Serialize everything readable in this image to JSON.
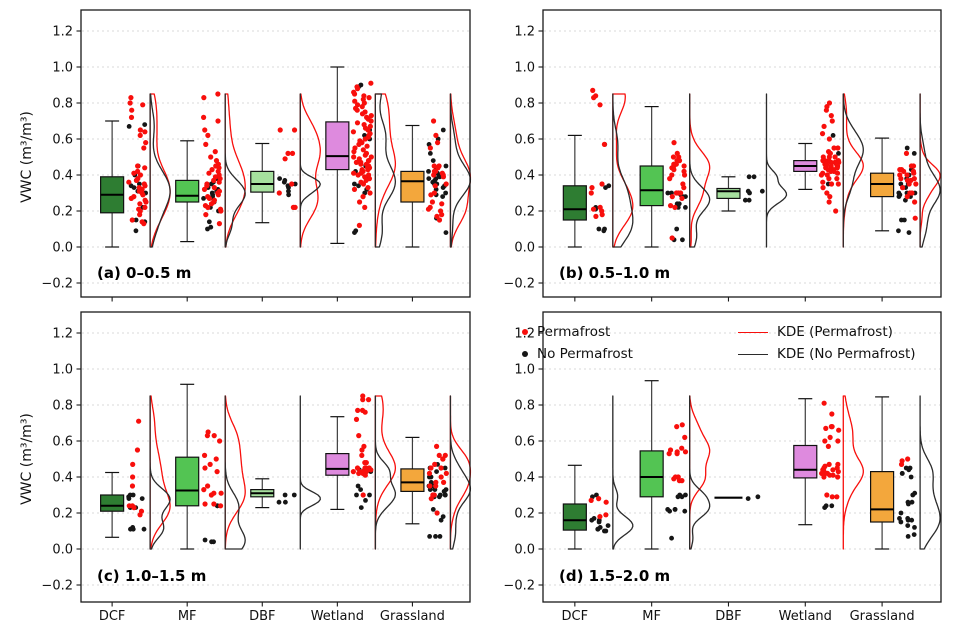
{
  "figure": {
    "ylabel": "VWC (m³/m³)",
    "categories": [
      "DCF",
      "MF",
      "DBF",
      "Wetland",
      "Grassland"
    ],
    "yticks": [
      1.2,
      1.0,
      0.8,
      0.6,
      0.4,
      0.2,
      0.0,
      -0.2
    ],
    "ytick_labels": [
      "1.2",
      "1.0",
      "0.8",
      "0.6",
      "0.4",
      "0.2",
      "0.0",
      "−0.2"
    ],
    "ylim": [
      -0.285,
      1.315
    ],
    "kde_clip": [
      0.0,
      0.85
    ],
    "colors": {
      "box_fills": [
        "#2e7d32",
        "#53c453",
        "#a6e09e",
        "#de8ade",
        "#f3a73c"
      ],
      "box_edge": "#111111",
      "whisker": "#3d3d3d",
      "permafrost": "#f80f0c",
      "no_permafrost": "#161616",
      "kde_permafrost": "#f80f0c",
      "kde_no_permafrost": "#2b2b2b",
      "grid": "#d8d8d8",
      "spine": "#1a1a1a"
    },
    "legend": [
      {
        "label": "Permafrost",
        "marker": "dot",
        "color": "#f80f0c"
      },
      {
        "label": "No Permafrost",
        "marker": "dot",
        "color": "#161616"
      },
      {
        "label": "KDE (Permafrost)",
        "marker": "line",
        "color": "#f80f0c"
      },
      {
        "label": "KDE (No Permafrost)",
        "marker": "line",
        "color": "#2b2b2b"
      }
    ]
  },
  "chart_data": [
    {
      "type": "box",
      "panel": "a",
      "label": "(a) 0–0.5 m",
      "categories": [
        "DCF",
        "MF",
        "DBF",
        "Wetland",
        "Grassland"
      ],
      "boxes": [
        {
          "whislo": 0.0,
          "q1": 0.19,
          "med": 0.29,
          "q3": 0.39,
          "whishi": 0.7
        },
        {
          "whislo": 0.03,
          "q1": 0.25,
          "med": 0.285,
          "q3": 0.37,
          "whishi": 0.59
        },
        {
          "whislo": 0.135,
          "q1": 0.305,
          "med": 0.35,
          "q3": 0.42,
          "whishi": 0.575
        },
        {
          "whislo": 0.02,
          "q1": 0.43,
          "med": 0.505,
          "q3": 0.695,
          "whishi": 1.0
        },
        {
          "whislo": 0.0,
          "q1": 0.25,
          "med": 0.365,
          "q3": 0.42,
          "whishi": 0.675
        }
      ],
      "points": {
        "permafrost": [
          [
            0.83,
            0.8,
            0.79,
            0.76,
            0.72,
            0.65,
            0.64,
            0.62,
            0.58,
            0.55,
            0.45,
            0.44,
            0.42,
            0.41,
            0.4,
            0.38,
            0.37,
            0.36,
            0.35,
            0.34,
            0.33,
            0.32,
            0.31,
            0.3,
            0.29,
            0.28,
            0.27,
            0.26,
            0.25,
            0.24,
            0.22,
            0.21,
            0.2,
            0.18,
            0.15,
            0.14,
            0.13
          ],
          [
            0.85,
            0.83,
            0.72,
            0.7,
            0.65,
            0.62,
            0.57,
            0.53,
            0.5,
            0.48,
            0.46,
            0.45,
            0.44,
            0.43,
            0.42,
            0.41,
            0.4,
            0.39,
            0.38,
            0.37,
            0.36,
            0.35,
            0.34,
            0.33,
            0.32,
            0.31,
            0.3,
            0.29,
            0.28,
            0.27,
            0.26,
            0.25,
            0.24,
            0.23,
            0.22,
            0.21,
            0.2,
            0.18,
            0.13
          ],
          [
            0.65,
            0.65,
            0.52,
            0.52,
            0.49,
            0.35,
            0.3,
            0.22,
            0.22
          ],
          [
            0.91,
            0.89,
            0.88,
            0.86,
            0.85,
            0.84,
            0.83,
            0.82,
            0.81,
            0.8,
            0.79,
            0.78,
            0.77,
            0.76,
            0.75,
            0.74,
            0.73,
            0.72,
            0.71,
            0.7,
            0.69,
            0.68,
            0.67,
            0.66,
            0.65,
            0.64,
            0.63,
            0.62,
            0.61,
            0.6,
            0.59,
            0.58,
            0.57,
            0.56,
            0.55,
            0.54,
            0.53,
            0.52,
            0.51,
            0.5,
            0.5,
            0.49,
            0.48,
            0.48,
            0.47,
            0.47,
            0.46,
            0.46,
            0.45,
            0.45,
            0.44,
            0.44,
            0.43,
            0.43,
            0.42,
            0.42,
            0.41,
            0.41,
            0.4,
            0.4,
            0.39,
            0.38,
            0.37,
            0.36,
            0.35,
            0.33,
            0.32,
            0.3,
            0.28,
            0.25,
            0.22,
            0.12
          ],
          [
            0.7,
            0.62,
            0.58,
            0.55,
            0.45,
            0.45,
            0.44,
            0.42,
            0.42,
            0.41,
            0.4,
            0.4,
            0.39,
            0.35,
            0.34,
            0.3,
            0.29,
            0.25,
            0.24,
            0.22,
            0.21,
            0.2,
            0.18,
            0.17,
            0.15
          ]
        ],
        "no_permafrost": [
          [
            0.68,
            0.67,
            0.45,
            0.4,
            0.37,
            0.35,
            0.34,
            0.33,
            0.31,
            0.3,
            0.29,
            0.27,
            0.25,
            0.22,
            0.15,
            0.14,
            0.09
          ],
          [
            0.38,
            0.36,
            0.35,
            0.33,
            0.32,
            0.31,
            0.3,
            0.29,
            0.28,
            0.27,
            0.26,
            0.25,
            0.22,
            0.2,
            0.14,
            0.11,
            0.1
          ],
          [
            0.38,
            0.37,
            0.36,
            0.35,
            0.34,
            0.33,
            0.31,
            0.29
          ],
          [
            0.9,
            0.89,
            0.65,
            0.62,
            0.6,
            0.45,
            0.42,
            0.38,
            0.35,
            0.34,
            0.32,
            0.3,
            0.09,
            0.08
          ],
          [
            0.65,
            0.6,
            0.57,
            0.52,
            0.48,
            0.45,
            0.44,
            0.42,
            0.41,
            0.4,
            0.4,
            0.39,
            0.38,
            0.38,
            0.37,
            0.36,
            0.35,
            0.35,
            0.34,
            0.33,
            0.32,
            0.3,
            0.29,
            0.28,
            0.16,
            0.08
          ]
        ]
      },
      "kde_shown": {
        "permafrost": [
          true,
          true,
          true,
          true,
          true
        ],
        "no_permafrost": [
          true,
          true,
          true,
          true,
          true
        ]
      }
    },
    {
      "type": "box",
      "panel": "b",
      "label": "(b) 0.5–1.0 m",
      "categories": [
        "DCF",
        "MF",
        "DBF",
        "Wetland",
        "Grassland"
      ],
      "boxes": [
        {
          "whislo": 0.0,
          "q1": 0.15,
          "med": 0.21,
          "q3": 0.34,
          "whishi": 0.62
        },
        {
          "whislo": 0.0,
          "q1": 0.23,
          "med": 0.315,
          "q3": 0.45,
          "whishi": 0.78
        },
        {
          "whislo": 0.2,
          "q1": 0.27,
          "med": 0.31,
          "q3": 0.325,
          "whishi": 0.39
        },
        {
          "whislo": 0.32,
          "q1": 0.42,
          "med": 0.45,
          "q3": 0.48,
          "whishi": 0.575
        },
        {
          "whislo": 0.09,
          "q1": 0.28,
          "med": 0.35,
          "q3": 0.41,
          "whishi": 0.605
        }
      ],
      "points": {
        "permafrost": [
          [
            0.87,
            0.84,
            0.83,
            0.79,
            0.57,
            0.35,
            0.33,
            0.3,
            0.22,
            0.21,
            0.2,
            0.18,
            0.17
          ],
          [
            0.58,
            0.52,
            0.5,
            0.5,
            0.48,
            0.48,
            0.46,
            0.46,
            0.45,
            0.45,
            0.44,
            0.43,
            0.42,
            0.4,
            0.4,
            0.38,
            0.35,
            0.33,
            0.3,
            0.3,
            0.3,
            0.28,
            0.27,
            0.23,
            0.22,
            0.05
          ],
          [],
          [
            0.8,
            0.78,
            0.76,
            0.73,
            0.7,
            0.67,
            0.63,
            0.6,
            0.55,
            0.55,
            0.53,
            0.52,
            0.52,
            0.5,
            0.5,
            0.5,
            0.48,
            0.48,
            0.48,
            0.48,
            0.47,
            0.47,
            0.47,
            0.46,
            0.46,
            0.46,
            0.45,
            0.45,
            0.45,
            0.45,
            0.44,
            0.44,
            0.44,
            0.43,
            0.43,
            0.43,
            0.42,
            0.42,
            0.41,
            0.41,
            0.4,
            0.4,
            0.38,
            0.38,
            0.36,
            0.35,
            0.35,
            0.33,
            0.3,
            0.28,
            0.25,
            0.2
          ],
          [
            0.52,
            0.45,
            0.45,
            0.43,
            0.43,
            0.42,
            0.42,
            0.41,
            0.4,
            0.4,
            0.38,
            0.38,
            0.37,
            0.37,
            0.35,
            0.35,
            0.33,
            0.3,
            0.3,
            0.28,
            0.25,
            0.16
          ]
        ],
        "no_permafrost": [
          [
            0.57,
            0.34,
            0.33,
            0.22,
            0.21,
            0.1,
            0.1,
            0.09
          ],
          [
            0.3,
            0.3,
            0.29,
            0.28,
            0.28,
            0.24,
            0.24,
            0.22,
            0.22,
            0.1,
            0.04,
            0.04
          ],
          [
            0.39,
            0.39,
            0.31,
            0.31,
            0.3,
            0.26,
            0.26
          ],
          [
            0.62,
            0.52,
            0.52,
            0.35
          ],
          [
            0.55,
            0.52,
            0.43,
            0.4,
            0.38,
            0.35,
            0.35,
            0.33,
            0.33,
            0.3,
            0.3,
            0.3,
            0.29,
            0.28,
            0.28,
            0.26,
            0.15,
            0.15,
            0.09,
            0.08
          ]
        ]
      },
      "kde_shown": {
        "permafrost": [
          true,
          true,
          false,
          true,
          true
        ],
        "no_permafrost": [
          true,
          true,
          true,
          true,
          true
        ]
      }
    },
    {
      "type": "box",
      "panel": "c",
      "label": "(c) 1.0–1.5 m",
      "categories": [
        "DCF",
        "MF",
        "DBF",
        "Wetland",
        "Grassland"
      ],
      "boxes": [
        {
          "whislo": 0.065,
          "q1": 0.21,
          "med": 0.24,
          "q3": 0.3,
          "whishi": 0.425
        },
        {
          "whislo": 0.0,
          "q1": 0.24,
          "med": 0.325,
          "q3": 0.51,
          "whishi": 0.915
        },
        {
          "whislo": 0.23,
          "q1": 0.29,
          "med": 0.31,
          "q3": 0.33,
          "whishi": 0.39
        },
        {
          "whislo": 0.22,
          "q1": 0.41,
          "med": 0.445,
          "q3": 0.53,
          "whishi": 0.735
        },
        {
          "whislo": 0.14,
          "q1": 0.32,
          "med": 0.37,
          "q3": 0.445,
          "whishi": 0.62
        }
      ],
      "points": {
        "permafrost": [
          [
            0.71,
            0.55,
            0.47,
            0.4,
            0.35,
            0.24,
            0.24,
            0.23,
            0.21,
            0.19
          ],
          [
            0.65,
            0.63,
            0.63,
            0.6,
            0.52,
            0.5,
            0.47,
            0.45,
            0.43,
            0.35,
            0.33,
            0.31,
            0.31,
            0.3,
            0.25,
            0.25,
            0.24
          ],
          [],
          [
            0.85,
            0.83,
            0.83,
            0.77,
            0.77,
            0.76,
            0.72,
            0.63,
            0.57,
            0.55,
            0.52,
            0.48,
            0.48,
            0.45,
            0.45,
            0.45,
            0.45,
            0.44,
            0.44,
            0.44,
            0.43,
            0.43,
            0.43,
            0.42,
            0.42,
            0.41,
            0.3
          ],
          [
            0.57,
            0.52,
            0.52,
            0.5,
            0.5,
            0.47,
            0.45,
            0.45,
            0.42,
            0.42,
            0.4,
            0.37,
            0.37,
            0.35,
            0.35,
            0.3,
            0.3,
            0.28,
            0.2
          ]
        ],
        "no_permafrost": [
          [
            0.3,
            0.3,
            0.29,
            0.28,
            0.28,
            0.23,
            0.23,
            0.12,
            0.11,
            0.11,
            0.11
          ],
          [
            0.24,
            0.24,
            0.05,
            0.04,
            0.04
          ],
          [
            0.3,
            0.3,
            0.26,
            0.26
          ],
          [
            0.44,
            0.44,
            0.43,
            0.35,
            0.33,
            0.3,
            0.3,
            0.27,
            0.23
          ],
          [
            0.47,
            0.45,
            0.45,
            0.43,
            0.4,
            0.4,
            0.37,
            0.35,
            0.35,
            0.35,
            0.33,
            0.33,
            0.33,
            0.32,
            0.32,
            0.3,
            0.3,
            0.3,
            0.29,
            0.29,
            0.22,
            0.18,
            0.16,
            0.07,
            0.07,
            0.07
          ]
        ]
      },
      "kde_shown": {
        "permafrost": [
          true,
          true,
          false,
          true,
          true
        ],
        "no_permafrost": [
          true,
          true,
          true,
          true,
          true
        ]
      }
    },
    {
      "type": "box",
      "panel": "d",
      "label": "(d) 1.5–2.0 m",
      "categories": [
        "DCF",
        "MF",
        "DBF",
        "Wetland",
        "Grassland"
      ],
      "boxes": [
        {
          "whislo": 0.0,
          "q1": 0.105,
          "med": 0.16,
          "q3": 0.25,
          "whishi": 0.465
        },
        {
          "whislo": 0.0,
          "q1": 0.29,
          "med": 0.4,
          "q3": 0.545,
          "whishi": 0.935
        },
        {
          "whislo": 0.285,
          "q1": 0.285,
          "med": 0.285,
          "q3": 0.285,
          "whishi": 0.285
        },
        {
          "whislo": 0.135,
          "q1": 0.395,
          "med": 0.44,
          "q3": 0.575,
          "whishi": 0.835
        },
        {
          "whislo": 0.0,
          "q1": 0.15,
          "med": 0.22,
          "q3": 0.43,
          "whishi": 0.845
        }
      ],
      "points": {
        "permafrost": [
          [
            0.28,
            0.27,
            0.26,
            0.19,
            0.18
          ],
          [
            0.69,
            0.68,
            0.62,
            0.56,
            0.55,
            0.54,
            0.54,
            0.53,
            0.53,
            0.4,
            0.4,
            0.39,
            0.38,
            0.38
          ],
          [],
          [
            0.81,
            0.75,
            0.68,
            0.68,
            0.67,
            0.66,
            0.62,
            0.6,
            0.6,
            0.57,
            0.47,
            0.47,
            0.46,
            0.45,
            0.45,
            0.44,
            0.44,
            0.43,
            0.43,
            0.42,
            0.42,
            0.42,
            0.41,
            0.41,
            0.4,
            0.4,
            0.3,
            0.29,
            0.29
          ],
          [
            0.5,
            0.49,
            0.47
          ]
        ],
        "no_permafrost": [
          [
            0.3,
            0.29,
            0.17,
            0.16,
            0.16,
            0.15,
            0.13,
            0.12,
            0.11,
            0.11,
            0.1,
            0.1
          ],
          [
            0.3,
            0.3,
            0.29,
            0.29,
            0.22,
            0.22,
            0.22,
            0.21,
            0.21,
            0.06
          ],
          [
            0.29,
            0.28
          ],
          [
            0.24,
            0.24,
            0.23
          ],
          [
            0.45,
            0.45,
            0.44,
            0.42,
            0.42,
            0.4,
            0.31,
            0.3,
            0.26,
            0.26,
            0.25,
            0.2,
            0.17,
            0.17,
            0.16,
            0.16,
            0.15,
            0.13,
            0.12,
            0.08,
            0.07
          ]
        ]
      },
      "kde_shown": {
        "permafrost": [
          false,
          true,
          false,
          true,
          false
        ],
        "no_permafrost": [
          true,
          true,
          false,
          false,
          true
        ]
      }
    }
  ]
}
